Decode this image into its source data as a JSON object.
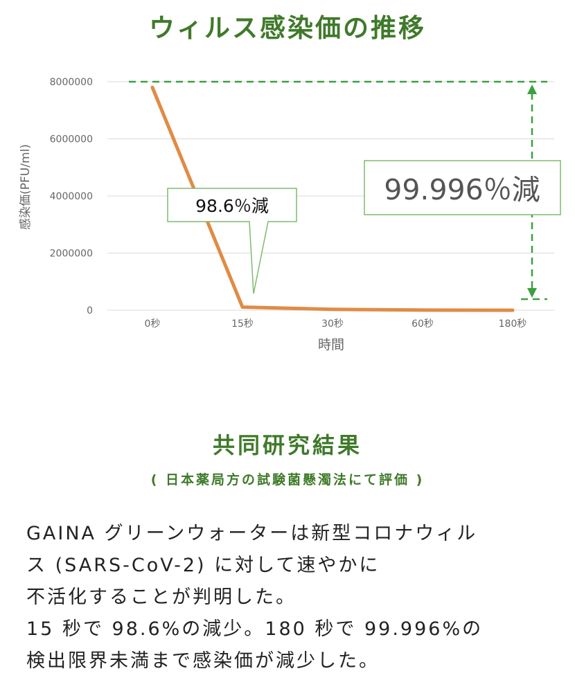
{
  "colors": {
    "green": "#3f7a2a",
    "dashed_green": "#3aa040",
    "callout_border": "#7dbb6a",
    "line": "#e08b45",
    "axis_text": "#666666",
    "grid": "#d9d9d9"
  },
  "header": {
    "title": "ウィルス感染価の推移"
  },
  "chart_data": {
    "type": "line",
    "categories": [
      "0秒",
      "15秒",
      "30秒",
      "60秒",
      "180秒"
    ],
    "series": [
      {
        "values": [
          7800000,
          110000,
          30000,
          5000,
          312
        ]
      }
    ],
    "xlabel": "時間",
    "ylabel": "感染価(PFU/ml)",
    "ylim": [
      0,
      8000000
    ],
    "yticks": [
      0,
      2000000,
      4000000,
      6000000,
      8000000
    ],
    "ytick_labels": [
      "0",
      "2000000",
      "4000000",
      "6000000",
      "8000000"
    ],
    "grid": true,
    "annotations": [
      {
        "text": "98.6％減",
        "target_category": "15秒"
      },
      {
        "text": "99.996％減",
        "target_category": "180秒"
      }
    ]
  },
  "section": {
    "title": "共同研究結果",
    "subtitle": "( 日本薬局方の試験菌懸濁法にて評価 )",
    "paragraph_lines": [
      "GAINA グリーンウォーターは新型コロナウィル",
      "ス (SARS-CoV-2) に対して速やかに",
      "不活化することが判明した。",
      "15 秒で 98.6%の減少。180 秒で 99.996%の",
      "検出限界未満まで感染価が減少した。"
    ]
  }
}
